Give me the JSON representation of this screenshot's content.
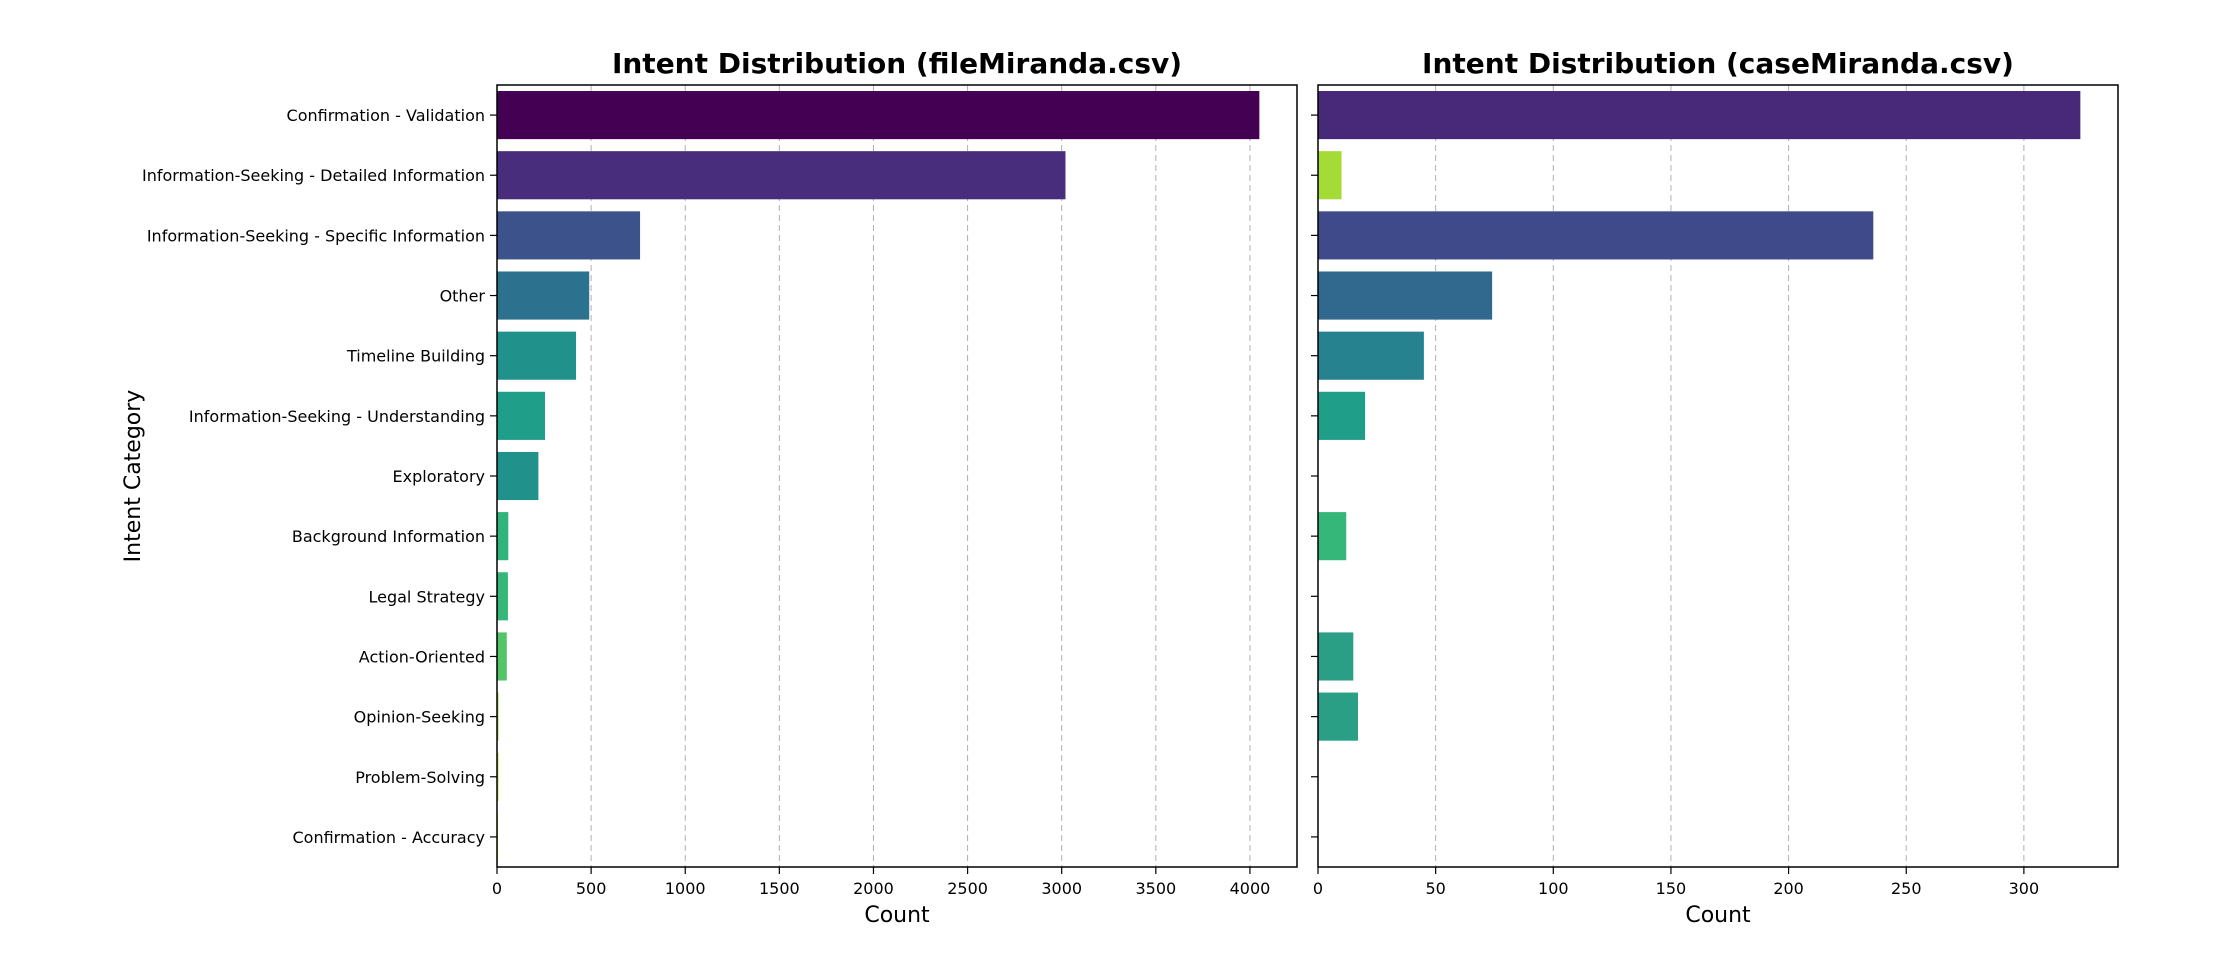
{
  "chart_data": {
    "type": "bar",
    "orientation": "horizontal",
    "ylabel": "Intent Category",
    "categories": [
      "Confirmation - Validation",
      "Information-Seeking - Detailed Information",
      "Information-Seeking - Specific Information",
      "Other",
      "Timeline Building",
      "Information-Seeking - Understanding",
      "Exploratory",
      "Background Information",
      "Legal Strategy",
      "Action-Oriented",
      "Opinion-Seeking",
      "Problem-Solving",
      "Confirmation - Accuracy"
    ],
    "panels": [
      {
        "title": "Intent Distribution (fileMiranda.csv)",
        "xlabel": "Count",
        "xlim": [
          0,
          4250
        ],
        "xticks": [
          0,
          500,
          1000,
          1500,
          2000,
          2500,
          3000,
          3500,
          4000
        ],
        "values": [
          4050,
          3020,
          760,
          490,
          420,
          255,
          220,
          60,
          58,
          52,
          8,
          8,
          5
        ],
        "colors": [
          "#440154",
          "#472d7b",
          "#3b528b",
          "#2c728e",
          "#21918c",
          "#1f9e89",
          "#21918c",
          "#2fb47c",
          "#35b779",
          "#52c569",
          "#a0da39",
          "#c8e020",
          "#d8e219"
        ]
      },
      {
        "title": "Intent Distribution (caseMiranda.csv)",
        "xlabel": "Count",
        "xlim": [
          0,
          340
        ],
        "xticks": [
          0,
          50,
          100,
          150,
          200,
          250,
          300
        ],
        "values": [
          324,
          10,
          236,
          74,
          45,
          20,
          null,
          12,
          null,
          15,
          17,
          null,
          null
        ],
        "value_order": [
          "Confirmation - Validation",
          "Information-Seeking - Detailed Information",
          "Information-Seeking - Specific Information",
          "Other",
          "Timeline Building",
          "Information-Seeking - Understanding",
          "Exploratory",
          "Background Information",
          "Legal Strategy",
          "Action-Oriented",
          "Opinion-Seeking",
          "Problem-Solving",
          "Confirmation - Accuracy"
        ],
        "colors": [
          "#482878",
          "#a5db36",
          "#3e4a89",
          "#31688e",
          "#26828e",
          "#1f9e89",
          "#7ad151",
          "#35b779",
          "#55c667",
          "#2a9f86",
          "#2a9f86",
          "#2a9f86",
          "#2a9f86"
        ]
      }
    ]
  }
}
